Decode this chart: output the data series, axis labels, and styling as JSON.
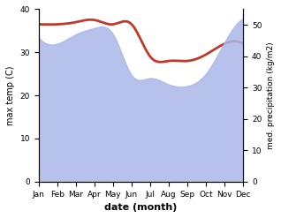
{
  "month_labels": [
    "Jan",
    "Feb",
    "Mar",
    "Apr",
    "May",
    "Jun",
    "Jul",
    "Aug",
    "Sep",
    "Oct",
    "Nov",
    "Dec"
  ],
  "max_temp": [
    36.5,
    36.5,
    37.0,
    37.5,
    36.5,
    36.5,
    29.0,
    28.0,
    28.0,
    29.5,
    32.0,
    32.0
  ],
  "precipitation": [
    46.0,
    44.0,
    47.0,
    49.0,
    47.0,
    34.0,
    33.0,
    31.0,
    30.5,
    34.5,
    44.5,
    52.0
  ],
  "temp_color": "#c0392b",
  "precip_color": "#aab8e8",
  "temp_lw": 2.0,
  "ylabel_left": "max temp (C)",
  "ylabel_right": "med. precipitation (kg/m2)",
  "xlabel": "date (month)",
  "ylim_left": [
    0,
    40
  ],
  "ylim_right": [
    0,
    55
  ],
  "yticks_left": [
    0,
    10,
    20,
    30,
    40
  ],
  "yticks_right": [
    0,
    10,
    20,
    30,
    40,
    50
  ],
  "bg_color": "#ffffff"
}
